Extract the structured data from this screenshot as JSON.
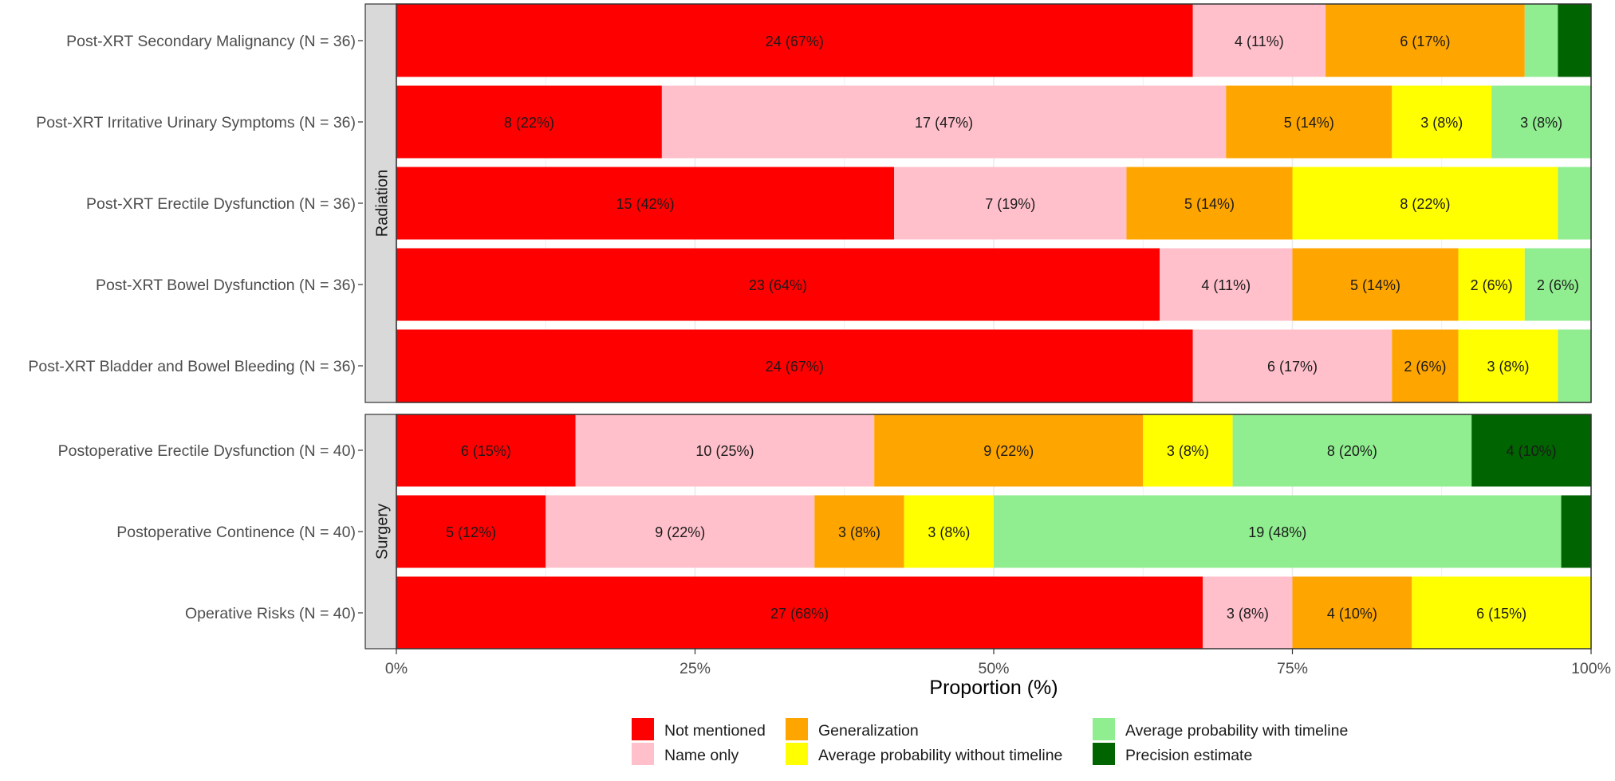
{
  "chart_data": {
    "type": "bar",
    "orientation": "horizontal-stacked-100",
    "xlabel": "Proportion (%)",
    "x_ticks": [
      "0%",
      "25%",
      "50%",
      "75%",
      "100%"
    ],
    "xlim": [
      0,
      100
    ],
    "legend_position": "bottom",
    "legend": [
      {
        "key": "not_mentioned",
        "label": "Not mentioned",
        "color": "#FF0000"
      },
      {
        "key": "name_only",
        "label": "Name only",
        "color": "#FFC0CB"
      },
      {
        "key": "generalization",
        "label": "Generalization",
        "color": "#FFA500"
      },
      {
        "key": "avg_no_timeline",
        "label": "Average probability without timeline",
        "color": "#FFFF00"
      },
      {
        "key": "avg_timeline",
        "label": "Average probability with timeline",
        "color": "#90EE90"
      },
      {
        "key": "precision",
        "label": "Precision estimate",
        "color": "#006400"
      }
    ],
    "panels": [
      {
        "strip": "Radiation",
        "rows": [
          {
            "label": "Post-XRT Secondary Malignancy (N = 36)",
            "n": 36,
            "counts": [
              24,
              4,
              6,
              0,
              1,
              1
            ],
            "labels": [
              "24 (67%)",
              "4 (11%)",
              "6 (17%)",
              "",
              "",
              ""
            ]
          },
          {
            "label": "Post-XRT Irritative Urinary Symptoms (N = 36)",
            "n": 36,
            "counts": [
              8,
              17,
              5,
              3,
              3,
              0
            ],
            "labels": [
              "8 (22%)",
              "17 (47%)",
              "5 (14%)",
              "3 (8%)",
              "3 (8%)",
              ""
            ]
          },
          {
            "label": "Post-XRT Erectile Dysfunction (N = 36)",
            "n": 36,
            "counts": [
              15,
              7,
              5,
              8,
              1,
              0
            ],
            "labels": [
              "15 (42%)",
              "7 (19%)",
              "5 (14%)",
              "8 (22%)",
              "",
              ""
            ]
          },
          {
            "label": "Post-XRT Bowel Dysfunction (N = 36)",
            "n": 36,
            "counts": [
              23,
              4,
              5,
              2,
              2,
              0
            ],
            "labels": [
              "23 (64%)",
              "4 (11%)",
              "5 (14%)",
              "2 (6%)",
              "2 (6%)",
              ""
            ]
          },
          {
            "label": "Post-XRT Bladder and Bowel Bleeding (N = 36)",
            "n": 36,
            "counts": [
              24,
              6,
              2,
              3,
              1,
              0
            ],
            "labels": [
              "24 (67%)",
              "6 (17%)",
              "2 (6%)",
              "3 (8%)",
              "",
              ""
            ]
          }
        ]
      },
      {
        "strip": "Surgery",
        "rows": [
          {
            "label": "Postoperative Erectile Dysfunction (N = 40)",
            "n": 40,
            "counts": [
              6,
              10,
              9,
              3,
              8,
              4
            ],
            "labels": [
              "6 (15%)",
              "10 (25%)",
              "9 (22%)",
              "3 (8%)",
              "8 (20%)",
              "4 (10%)"
            ]
          },
          {
            "label": "Postoperative Continence (N = 40)",
            "n": 40,
            "counts": [
              5,
              9,
              3,
              3,
              19,
              1
            ],
            "labels": [
              "5 (12%)",
              "9 (22%)",
              "3 (8%)",
              "3 (8%)",
              "19 (48%)",
              ""
            ]
          },
          {
            "label": "Operative Risks (N = 40)",
            "n": 40,
            "counts": [
              27,
              3,
              4,
              6,
              0,
              0
            ],
            "labels": [
              "27 (68%)",
              "3 (8%)",
              "4 (10%)",
              "6 (15%)",
              "",
              ""
            ]
          }
        ]
      }
    ]
  }
}
